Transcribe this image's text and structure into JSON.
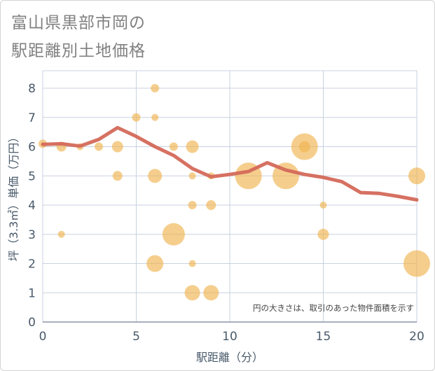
{
  "title_lines": [
    "富山県黒部市岡の",
    "駅距離別土地価格"
  ],
  "chart_data": {
    "type": "scatter+line",
    "xlabel": "駅距離（分）",
    "ylabel": "坪（3.3㎡）単価（万円）",
    "note": "円の大きさは、取引のあった物件面積を示す",
    "xlim": [
      0,
      20
    ],
    "ylim": [
      0,
      8.6
    ],
    "xticks": [
      0,
      5,
      10,
      15,
      20
    ],
    "yticks": [
      0,
      1,
      2,
      3,
      4,
      5,
      6,
      7,
      8
    ],
    "grid": true,
    "colors": {
      "bubble": "#f0b450",
      "line": "#d4695a",
      "grid": "#c8d2e0",
      "axis_text": "#4a5a6a"
    },
    "bubbles": [
      {
        "x": 0,
        "y": 6.1,
        "size": 6
      },
      {
        "x": 1,
        "y": 6.0,
        "size": 7
      },
      {
        "x": 1,
        "y": 3.0,
        "size": 5
      },
      {
        "x": 2,
        "y": 6.0,
        "size": 5
      },
      {
        "x": 3,
        "y": 6.0,
        "size": 6
      },
      {
        "x": 4,
        "y": 6.0,
        "size": 8
      },
      {
        "x": 4,
        "y": 5.0,
        "size": 7
      },
      {
        "x": 5,
        "y": 7.0,
        "size": 6
      },
      {
        "x": 6,
        "y": 8.0,
        "size": 6
      },
      {
        "x": 6,
        "y": 7.0,
        "size": 5
      },
      {
        "x": 6,
        "y": 5.0,
        "size": 10
      },
      {
        "x": 6,
        "y": 2.0,
        "size": 12
      },
      {
        "x": 7,
        "y": 6.0,
        "size": 6
      },
      {
        "x": 7,
        "y": 3.0,
        "size": 16
      },
      {
        "x": 8,
        "y": 6.0,
        "size": 9
      },
      {
        "x": 8,
        "y": 5.0,
        "size": 5
      },
      {
        "x": 8,
        "y": 4.0,
        "size": 6
      },
      {
        "x": 8,
        "y": 2.0,
        "size": 5
      },
      {
        "x": 8,
        "y": 1.0,
        "size": 11
      },
      {
        "x": 9,
        "y": 5.0,
        "size": 5
      },
      {
        "x": 9,
        "y": 4.0,
        "size": 7
      },
      {
        "x": 9,
        "y": 1.0,
        "size": 11
      },
      {
        "x": 11,
        "y": 5.0,
        "size": 19
      },
      {
        "x": 13,
        "y": 5.0,
        "size": 19
      },
      {
        "x": 14,
        "y": 6.0,
        "size": 19
      },
      {
        "x": 14,
        "y": 6.0,
        "size": 8
      },
      {
        "x": 15,
        "y": 4.0,
        "size": 5
      },
      {
        "x": 15,
        "y": 3.0,
        "size": 8
      },
      {
        "x": 20,
        "y": 5.0,
        "size": 12
      },
      {
        "x": 20,
        "y": 2.0,
        "size": 19
      }
    ],
    "line": [
      {
        "x": 0,
        "y": 6.08
      },
      {
        "x": 1,
        "y": 6.1
      },
      {
        "x": 2,
        "y": 6.02
      },
      {
        "x": 3,
        "y": 6.25
      },
      {
        "x": 4,
        "y": 6.65
      },
      {
        "x": 5,
        "y": 6.35
      },
      {
        "x": 6,
        "y": 6.0
      },
      {
        "x": 7,
        "y": 5.7
      },
      {
        "x": 8,
        "y": 5.25
      },
      {
        "x": 9,
        "y": 4.97
      },
      {
        "x": 10,
        "y": 5.05
      },
      {
        "x": 11,
        "y": 5.15
      },
      {
        "x": 12,
        "y": 5.45
      },
      {
        "x": 13,
        "y": 5.2
      },
      {
        "x": 14,
        "y": 5.05
      },
      {
        "x": 15,
        "y": 4.95
      },
      {
        "x": 16,
        "y": 4.8
      },
      {
        "x": 17,
        "y": 4.43
      },
      {
        "x": 18,
        "y": 4.4
      },
      {
        "x": 19,
        "y": 4.3
      },
      {
        "x": 20,
        "y": 4.18
      }
    ]
  }
}
